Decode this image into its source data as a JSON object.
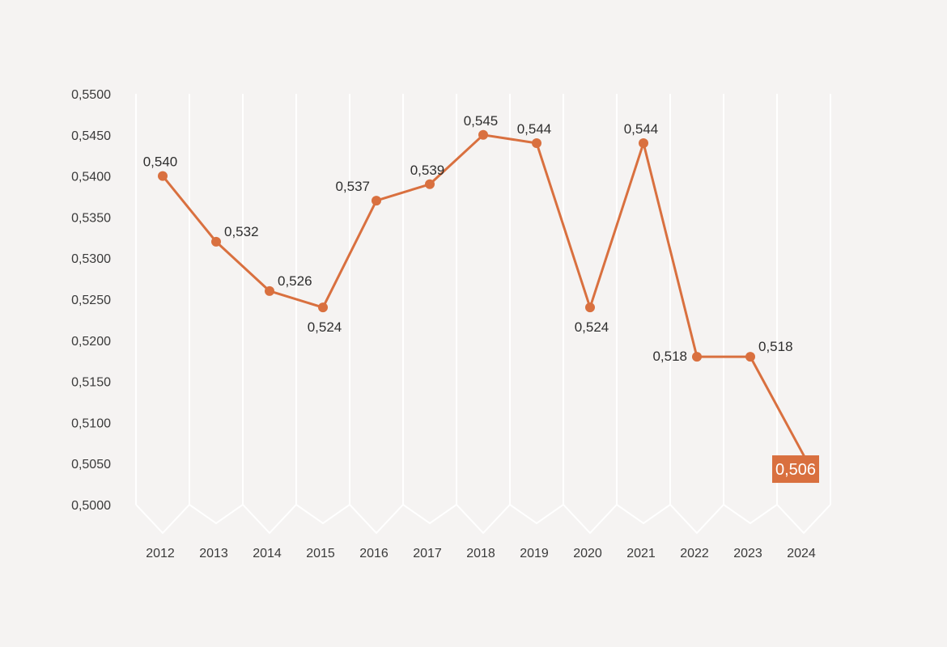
{
  "colors": {
    "background": "#f5f3f2",
    "grid": "#ffffff",
    "line": "#d9703f",
    "text": "#3a3a3a",
    "highlight_bg": "#d9703f",
    "highlight_text": "#ffffff"
  },
  "chart_data": {
    "type": "line",
    "title": "",
    "xlabel": "",
    "ylabel": "",
    "categories": [
      "2012",
      "2013",
      "2014",
      "2015",
      "2016",
      "2017",
      "2018",
      "2019",
      "2020",
      "2021",
      "2022",
      "2023",
      "2024"
    ],
    "values": [
      0.54,
      0.532,
      0.526,
      0.524,
      0.537,
      0.539,
      0.545,
      0.544,
      0.524,
      0.544,
      0.518,
      0.518,
      0.506
    ],
    "data_labels": [
      "0,540",
      "0,532",
      "0,526",
      "0,524",
      "0,537",
      "0,539",
      "0,545",
      "0,544",
      "0,524",
      "0,544",
      "0,518",
      "0,518",
      "0,506"
    ],
    "label_positions": [
      "above",
      "right",
      "right",
      "below",
      "above-left",
      "above",
      "above",
      "above",
      "below",
      "above",
      "left",
      "right",
      "highlight"
    ],
    "ylim": [
      0.5,
      0.55
    ],
    "yticks": [
      0.5,
      0.505,
      0.51,
      0.515,
      0.52,
      0.525,
      0.53,
      0.535,
      0.54,
      0.545,
      0.55
    ],
    "ytick_labels": [
      "0,5000",
      "0,5050",
      "0,5100",
      "0,5150",
      "0,5200",
      "0,5250",
      "0,5300",
      "0,5350",
      "0,5400",
      "0,5450",
      "0,5500"
    ],
    "grid": true,
    "highlight_index": 12
  }
}
